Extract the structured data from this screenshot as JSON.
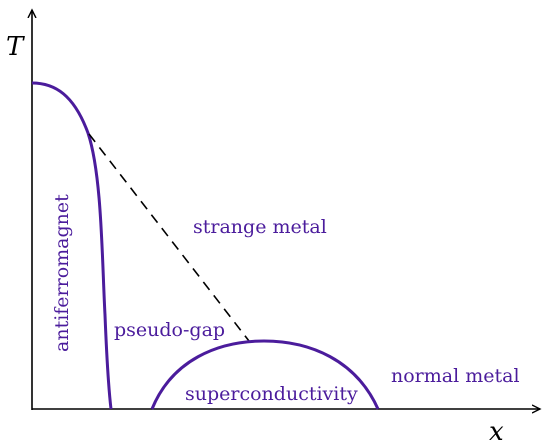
{
  "axes": {
    "y_label": "T",
    "x_label": "x"
  },
  "regions": {
    "antiferromagnet": "antiferromagnet",
    "pseudo_gap": "pseudo-gap",
    "strange_metal": "strange metal",
    "superconductivity": "superconductivity",
    "normal_metal": "normal metal"
  },
  "colors": {
    "axis": "#000000",
    "curve": "#4b1c9c",
    "label": "#4b1c9c",
    "dashed": "#000000"
  }
}
